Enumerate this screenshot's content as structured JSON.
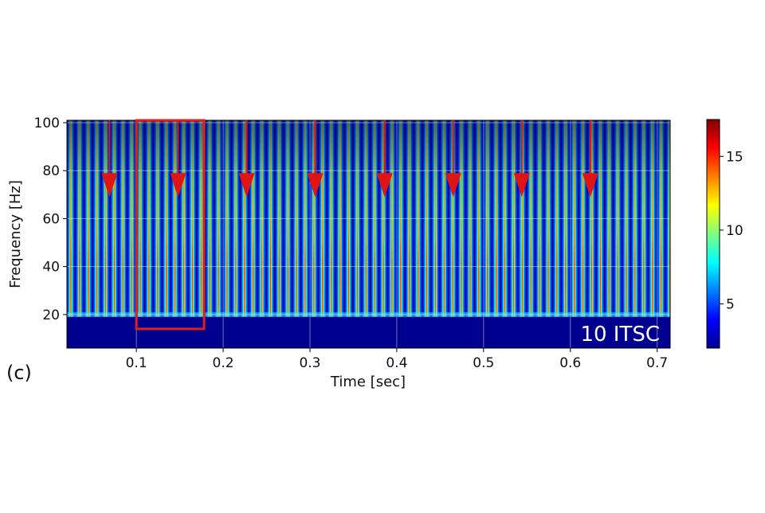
{
  "panel_label": "(c)",
  "chart_data": {
    "type": "heatmap",
    "subtype": "spectrogram",
    "colormap": "jet",
    "xlabel": "Time [sec]",
    "ylabel": "Frequency [Hz]",
    "xlim": [
      0.02,
      0.715
    ],
    "ylim": [
      6,
      101
    ],
    "xticks": [
      0.1,
      0.2,
      0.3,
      0.4,
      0.5,
      0.6,
      0.7
    ],
    "xtick_labels": [
      "0.1",
      "0.2",
      "0.3",
      "0.4",
      "0.5",
      "0.6",
      "0.7"
    ],
    "yticks": [
      20,
      40,
      60,
      80,
      100
    ],
    "ytick_labels": [
      "20",
      "40",
      "60",
      "80",
      "100"
    ],
    "grid": true,
    "colorbar": {
      "range": [
        2,
        17.5
      ],
      "ticks": [
        5,
        10,
        15
      ],
      "tick_labels": [
        "5",
        "10",
        "15"
      ]
    },
    "lower_cutoff_hz": 20,
    "stripe_period_sec": 0.01,
    "annotation": "10 ITSC",
    "arrows_time_sec": [
      0.069,
      0.148,
      0.227,
      0.306,
      0.386,
      0.465,
      0.544,
      0.623
    ],
    "arrows_tip_hz": 69,
    "highlight_box": {
      "t0": 0.1,
      "t1": 0.178,
      "f0": 14,
      "f1": 101,
      "color": "#e0201b"
    },
    "accent_color": "#e01414"
  }
}
